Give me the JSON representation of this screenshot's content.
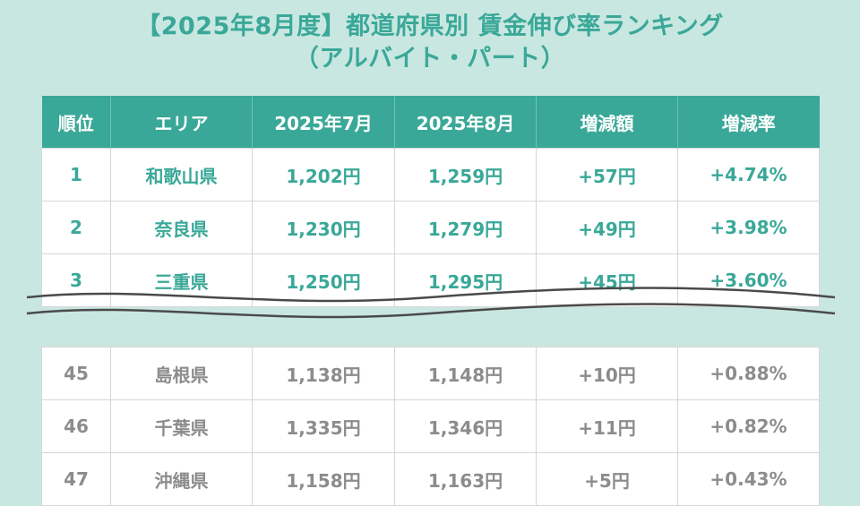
{
  "title": {
    "line1": "【2025年8月度】都道府県別 賃金伸び率ランキング",
    "line2": "（アルバイト・パート）"
  },
  "table": {
    "headers": [
      "順位",
      "エリア",
      "2025年7月",
      "2025年8月",
      "増減額",
      "増減率"
    ],
    "top_rows": [
      {
        "rank": "1",
        "area": "和歌山県",
        "jul": "1,202円",
        "aug": "1,259円",
        "diff": "+57円",
        "rate": "+4.74%"
      },
      {
        "rank": "2",
        "area": "奈良県",
        "jul": "1,230円",
        "aug": "1,279円",
        "diff": "+49円",
        "rate": "+3.98%"
      },
      {
        "rank": "3",
        "area": "三重県",
        "jul": "1,250円",
        "aug": "1,295円",
        "diff": "+45円",
        "rate": "+3.60%"
      }
    ],
    "bottom_rows": [
      {
        "rank": "45",
        "area": "島根県",
        "jul": "1,138円",
        "aug": "1,148円",
        "diff": "+10円",
        "rate": "+0.88%"
      },
      {
        "rank": "46",
        "area": "千葉県",
        "jul": "1,335円",
        "aug": "1,346円",
        "diff": "+11円",
        "rate": "+0.82%"
      },
      {
        "rank": "47",
        "area": "沖縄県",
        "jul": "1,158円",
        "aug": "1,163円",
        "diff": "+5円",
        "rate": "+0.43%"
      }
    ]
  },
  "colors": {
    "accent": "#3aa898",
    "background": "#c9e7e1",
    "muted_text": "#8c8c8c"
  }
}
